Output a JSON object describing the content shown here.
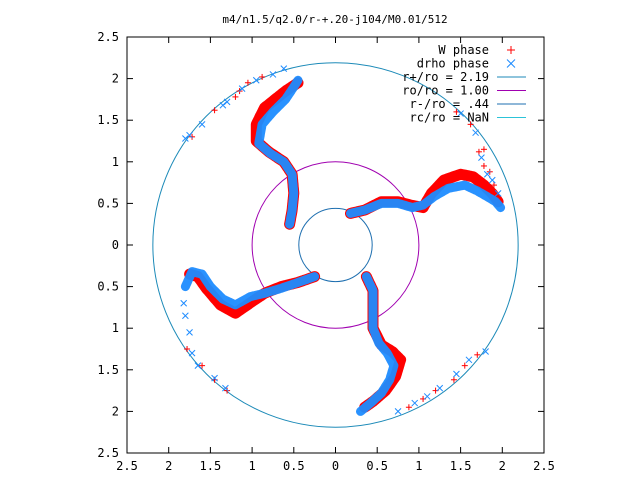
{
  "chart_data": {
    "type": "scatter",
    "title": "m4/n1.5/q2.0/r-+.20-j104/M0.01/512",
    "xlim": [
      -2.5,
      2.5
    ],
    "ylim": [
      -2.5,
      2.5
    ],
    "xticks": [
      -2.5,
      -2,
      -1.5,
      -1,
      -0.5,
      0,
      0.5,
      1,
      1.5,
      2,
      2.5
    ],
    "xtick_labels": [
      "2.5",
      "2",
      "1.5",
      "1",
      "0.5",
      "0",
      "0.5",
      "1",
      "1.5",
      "2",
      "2.5"
    ],
    "yticks": [
      2.5,
      2,
      1.5,
      1,
      0.5,
      0,
      -0.5,
      -1,
      -1.5,
      -2,
      -2.5
    ],
    "ytick_labels": [
      "2.5",
      "2",
      "1.5",
      "1",
      "0.5",
      "0",
      "0.5",
      "1",
      "1.5",
      "2",
      "2.5"
    ],
    "grid": false,
    "legend_position": "top-right",
    "legend": [
      {
        "label": "W phase",
        "marker": "+",
        "color": "#ff0000"
      },
      {
        "label": "drho phase",
        "marker": "x",
        "color": "#1e8cff"
      },
      {
        "label": "r+/ro = 2.19",
        "line": true,
        "color": "#1c8ab8"
      },
      {
        "label": "ro/ro = 1.00",
        "line": true,
        "color": "#a000b0"
      },
      {
        "label": "r-/ro = .44",
        "line": true,
        "color": "#1e6fb0"
      },
      {
        "label": "rc/ro = NaN",
        "line": true,
        "color": "#2cc3d8"
      }
    ],
    "circles": [
      {
        "name": "r+",
        "r": 2.19,
        "color": "#1c8ab8"
      },
      {
        "name": "ro",
        "r": 1.0,
        "color": "#a000b0"
      },
      {
        "name": "r-",
        "r": 0.44,
        "color": "#1e6fb0"
      }
    ],
    "series": [
      {
        "name": "W phase",
        "color": "#ff0000",
        "arms": [
          [
            [
              0.18,
              0.38
            ],
            [
              0.35,
              0.42
            ],
            [
              0.55,
              0.52
            ],
            [
              0.75,
              0.52
            ],
            [
              0.9,
              0.48
            ],
            [
              1.05,
              0.45
            ],
            [
              1.15,
              0.62
            ],
            [
              1.3,
              0.78
            ],
            [
              1.5,
              0.85
            ],
            [
              1.65,
              0.82
            ],
            [
              1.78,
              0.72
            ],
            [
              1.88,
              0.62
            ],
            [
              1.95,
              0.52
            ]
          ],
          [
            [
              0.37,
              -0.38
            ],
            [
              0.45,
              -0.55
            ],
            [
              0.45,
              -0.8
            ],
            [
              0.45,
              -1.0
            ],
            [
              0.55,
              -1.2
            ],
            [
              0.68,
              -1.28
            ],
            [
              0.78,
              -1.38
            ],
            [
              0.72,
              -1.58
            ],
            [
              0.6,
              -1.75
            ],
            [
              0.45,
              -1.88
            ],
            [
              0.35,
              -1.95
            ]
          ],
          [
            [
              -0.25,
              -0.38
            ],
            [
              -0.45,
              -0.45
            ],
            [
              -0.65,
              -0.5
            ],
            [
              -0.85,
              -0.58
            ],
            [
              -1.0,
              -0.68
            ],
            [
              -1.2,
              -0.82
            ],
            [
              -1.38,
              -0.72
            ],
            [
              -1.55,
              -0.52
            ],
            [
              -1.65,
              -0.38
            ],
            [
              -1.75,
              -0.35
            ]
          ],
          [
            [
              -0.55,
              0.25
            ],
            [
              -0.52,
              0.42
            ],
            [
              -0.5,
              0.62
            ],
            [
              -0.52,
              0.85
            ],
            [
              -0.62,
              1.0
            ],
            [
              -0.8,
              1.12
            ],
            [
              -0.95,
              1.25
            ],
            [
              -0.95,
              1.45
            ],
            [
              -0.85,
              1.65
            ],
            [
              -0.6,
              1.85
            ],
            [
              -0.45,
              1.95
            ]
          ]
        ],
        "scatter": [
          [
            1.45,
            1.6
          ],
          [
            1.62,
            1.45
          ],
          [
            1.72,
            1.12
          ],
          [
            1.78,
            0.95
          ],
          [
            1.9,
            0.72
          ],
          [
            1.85,
            0.88
          ],
          [
            1.7,
            -1.32
          ],
          [
            1.55,
            -1.45
          ],
          [
            1.42,
            -1.62
          ],
          [
            1.2,
            -1.75
          ],
          [
            1.05,
            -1.85
          ],
          [
            0.88,
            -1.95
          ],
          [
            -1.78,
            -1.25
          ],
          [
            -1.6,
            -1.45
          ],
          [
            -1.45,
            -1.62
          ],
          [
            -1.3,
            -1.75
          ],
          [
            -1.15,
            1.85
          ],
          [
            -1.2,
            1.78
          ],
          [
            -1.45,
            1.62
          ],
          [
            -1.72,
            1.3
          ],
          [
            -1.05,
            1.95
          ],
          [
            -0.88,
            2.02
          ],
          [
            1.78,
            1.15
          ]
        ]
      },
      {
        "name": "drho phase",
        "color": "#1e8cff",
        "arms": [
          [
            [
              0.18,
              0.38
            ],
            [
              0.35,
              0.42
            ],
            [
              0.55,
              0.5
            ],
            [
              0.75,
              0.5
            ],
            [
              0.92,
              0.45
            ],
            [
              1.05,
              0.48
            ],
            [
              1.18,
              0.58
            ],
            [
              1.35,
              0.68
            ],
            [
              1.55,
              0.72
            ],
            [
              1.7,
              0.65
            ],
            [
              1.82,
              0.58
            ],
            [
              1.92,
              0.52
            ],
            [
              1.98,
              0.45
            ]
          ],
          [
            [
              0.37,
              -0.38
            ],
            [
              0.45,
              -0.55
            ],
            [
              0.45,
              -0.8
            ],
            [
              0.45,
              -1.0
            ],
            [
              0.52,
              -1.18
            ],
            [
              0.62,
              -1.3
            ],
            [
              0.7,
              -1.45
            ],
            [
              0.65,
              -1.62
            ],
            [
              0.55,
              -1.78
            ],
            [
              0.42,
              -1.9
            ],
            [
              0.3,
              -2.0
            ]
          ],
          [
            [
              -0.25,
              -0.38
            ],
            [
              -0.45,
              -0.45
            ],
            [
              -0.65,
              -0.52
            ],
            [
              -0.85,
              -0.58
            ],
            [
              -1.02,
              -0.62
            ],
            [
              -1.2,
              -0.72
            ],
            [
              -1.35,
              -0.65
            ],
            [
              -1.5,
              -0.5
            ],
            [
              -1.6,
              -0.35
            ],
            [
              -1.72,
              -0.32
            ],
            [
              -1.8,
              -0.5
            ]
          ],
          [
            [
              -0.55,
              0.25
            ],
            [
              -0.52,
              0.42
            ],
            [
              -0.5,
              0.62
            ],
            [
              -0.52,
              0.85
            ],
            [
              -0.62,
              1.0
            ],
            [
              -0.78,
              1.1
            ],
            [
              -0.92,
              1.22
            ],
            [
              -0.88,
              1.45
            ],
            [
              -0.75,
              1.6
            ],
            [
              -0.6,
              1.75
            ],
            [
              -0.5,
              1.9
            ],
            [
              -0.45,
              1.98
            ]
          ]
        ],
        "scatter": [
          [
            1.5,
            1.58
          ],
          [
            1.68,
            1.35
          ],
          [
            1.75,
            1.05
          ],
          [
            1.82,
            0.85
          ],
          [
            1.95,
            0.62
          ],
          [
            1.88,
            0.78
          ],
          [
            1.8,
            -1.28
          ],
          [
            1.6,
            -1.38
          ],
          [
            1.45,
            -1.55
          ],
          [
            1.25,
            -1.72
          ],
          [
            1.1,
            -1.82
          ],
          [
            0.95,
            -1.9
          ],
          [
            0.75,
            -2.0
          ],
          [
            -1.8,
            -0.85
          ],
          [
            -1.75,
            -1.05
          ],
          [
            -1.72,
            -1.3
          ],
          [
            -1.65,
            -1.45
          ],
          [
            -1.45,
            -1.6
          ],
          [
            -1.32,
            -1.72
          ],
          [
            -1.12,
            1.88
          ],
          [
            -1.35,
            1.68
          ],
          [
            -1.6,
            1.45
          ],
          [
            -1.75,
            1.32
          ],
          [
            -0.95,
            1.98
          ],
          [
            -0.75,
            2.05
          ],
          [
            -0.62,
            2.12
          ],
          [
            -1.3,
            1.72
          ],
          [
            -1.8,
            1.28
          ],
          [
            -1.82,
            -0.7
          ]
        ]
      }
    ]
  }
}
